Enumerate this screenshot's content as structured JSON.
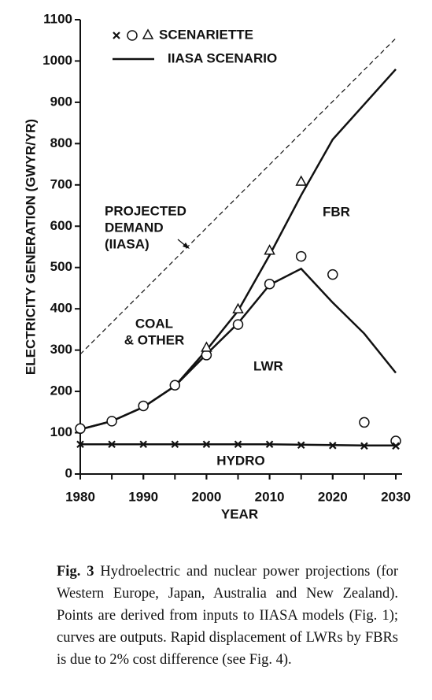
{
  "chart_data": {
    "type": "line",
    "xlabel": "YEAR",
    "ylabel": "ELECTRICITY GENERATION (GWYR/YR)",
    "xlim": [
      1980,
      2030
    ],
    "xticks": [
      1980,
      1990,
      2000,
      2010,
      2020,
      2030
    ],
    "ylim": [
      0,
      1100
    ],
    "yticks": [
      0,
      100,
      200,
      300,
      400,
      500,
      600,
      700,
      800,
      900,
      1000,
      1100
    ],
    "legend": [
      "SCENARIETTE",
      "IIASA SCENARIO"
    ],
    "annotations": {
      "projected_demand": [
        "PROJECTED",
        "DEMAND",
        "(IIASA)"
      ],
      "fbr": "FBR",
      "coal_other": [
        "COAL",
        "& OTHER"
      ],
      "lwr": "LWR",
      "hydro": "HYDRO"
    },
    "series": [
      {
        "style": "dashed",
        "color": "#111111",
        "x": [
          1980,
          2030
        ],
        "values": [
          290,
          1055
        ]
      },
      {
        "style": "solid",
        "color": "#111111",
        "x": [
          1980,
          1985,
          1990,
          1995,
          2000,
          2005,
          2010,
          2015,
          2020,
          2025,
          2030
        ],
        "values": [
          108,
          128,
          162,
          213,
          300,
          395,
          530,
          675,
          810,
          895,
          980
        ]
      },
      {
        "style": "solid",
        "color": "#111111",
        "x": [
          1980,
          1985,
          1990,
          1995,
          2000,
          2005,
          2010,
          2015,
          2020,
          2025,
          2030
        ],
        "values": [
          108,
          128,
          162,
          213,
          290,
          365,
          458,
          497,
          415,
          340,
          245
        ]
      },
      {
        "style": "solid",
        "color": "#111111",
        "x": [
          1980,
          1985,
          1990,
          1995,
          2000,
          2005,
          2010,
          2015,
          2020,
          2025,
          2030
        ],
        "values": [
          72,
          72,
          72,
          72,
          72,
          72,
          72,
          71,
          70,
          69,
          69
        ]
      },
      {
        "marker": "circle",
        "color": "#111111",
        "x": [
          1980,
          1985,
          1990,
          1995,
          2000,
          2005,
          2010,
          2015,
          2020,
          2025,
          2030
        ],
        "values": [
          110,
          128,
          165,
          215,
          288,
          362,
          460,
          527,
          483,
          125,
          80
        ]
      },
      {
        "marker": "triangle",
        "color": "#111111",
        "x": [
          2000,
          2005,
          2010,
          2015
        ],
        "values": [
          305,
          398,
          540,
          707
        ]
      },
      {
        "marker": "cross",
        "color": "#111111",
        "x": [
          1980,
          1985,
          1990,
          1995,
          2000,
          2005,
          2010,
          2015,
          2020,
          2025,
          2030
        ],
        "values": [
          72,
          72,
          72,
          72,
          72,
          72,
          72,
          70,
          69,
          68,
          68
        ]
      }
    ]
  },
  "caption": {
    "label": "Fig. 3",
    "text": "Hydroelectric and nuclear power projections (for Western Europe, Japan, Australia and New Zealand). Points are derived from inputs to IIASA models (Fig. 1); curves are outputs. Rapid displacement of LWRs by FBRs is due to 2% cost difference (see Fig. 4)."
  }
}
